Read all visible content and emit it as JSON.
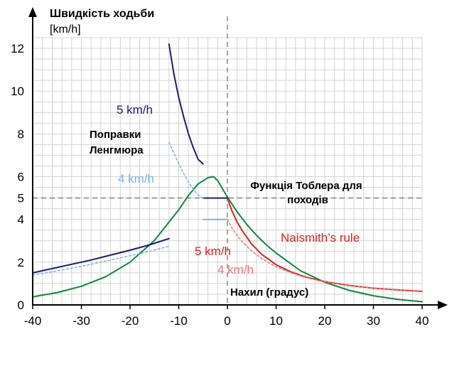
{
  "chart_data": {
    "type": "line",
    "title": "",
    "ylabel": "Швидкість ходьби",
    "yunit": "[km/h]",
    "xlabel": "Нахил (градус)",
    "xlim": [
      -40,
      40
    ],
    "ylim": [
      0,
      12.5
    ],
    "xticks": [
      -40,
      -30,
      -20,
      -10,
      0,
      10,
      20,
      30,
      40
    ],
    "yticks": [
      0,
      2,
      4,
      5,
      6,
      8,
      10,
      12
    ],
    "grid": true,
    "reference_lines": {
      "x": 0,
      "y": 5
    },
    "colors": {
      "tobler": "#0a8a3c",
      "naismith": "#e02020",
      "naismith_4": "#e87878",
      "langmuir": "#1c1c7a",
      "langmuir_4": "#7ab4e0",
      "grid": "#d4d4d4",
      "reference": "#7a7a7a"
    },
    "annotations": {
      "tobler": "Функція Тоблера для походів",
      "langmuir": "Поправки Ленгмюра",
      "naismith": "Naismith’s rule",
      "langmuir_5": "5 km/h",
      "langmuir_4": "4 km/h",
      "naismith_5": "5 km/h",
      "naismith_4": "4 km/h"
    },
    "series": [
      {
        "key": "tobler",
        "style": "solid",
        "x": [
          -40,
          -35,
          -30,
          -25,
          -20,
          -15,
          -10,
          -8,
          -6,
          -4,
          -2.86,
          -2,
          0,
          2,
          4,
          6,
          8,
          10,
          15,
          20,
          25,
          30,
          35,
          40
        ],
        "y": [
          0.38,
          0.58,
          0.87,
          1.32,
          2.0,
          3.01,
          4.45,
          5.12,
          5.66,
          5.95,
          6.0,
          5.82,
          5.04,
          4.35,
          3.76,
          3.25,
          2.81,
          2.43,
          1.6,
          1.06,
          0.68,
          0.43,
          0.26,
          0.15
        ]
      },
      {
        "key": "naismith",
        "style": "solid",
        "x": [
          0,
          0.5,
          1,
          2,
          3,
          5,
          7,
          10,
          13,
          16,
          20,
          25,
          30,
          35,
          40
        ],
        "y": [
          5.0,
          4.66,
          4.37,
          3.88,
          3.48,
          2.84,
          2.38,
          1.88,
          1.55,
          1.31,
          1.09,
          0.91,
          0.78,
          0.7,
          0.63
        ]
      },
      {
        "key": "naismith_4",
        "style": "dashed",
        "x": [
          0,
          0.5,
          1,
          2,
          3,
          5,
          7,
          10,
          13,
          16,
          20,
          25,
          30,
          35,
          40
        ],
        "y": [
          4.0,
          3.78,
          3.58,
          3.25,
          2.97,
          2.52,
          2.17,
          1.79,
          1.51,
          1.29,
          1.08,
          0.9,
          0.78,
          0.69,
          0.62
        ]
      },
      {
        "key": "langmuir_steep",
        "style": "solid",
        "x": [
          -12,
          -11,
          -10,
          -9,
          -8,
          -7,
          -6,
          -5
        ],
        "y": [
          12.2,
          10.8,
          9.7,
          8.8,
          8.0,
          7.35,
          6.8,
          6.6
        ]
      },
      {
        "key": "langmuir_flat",
        "style": "solid",
        "x": [
          -5,
          -4,
          -3,
          -2,
          -1,
          0
        ],
        "y": [
          5.0,
          5.0,
          5.0,
          5.0,
          5.0,
          5.0
        ]
      },
      {
        "key": "langmuir_gentle",
        "style": "solid",
        "x": [
          -40,
          -36,
          -32,
          -28,
          -24,
          -20,
          -16,
          -12
        ],
        "y": [
          1.5,
          1.7,
          1.9,
          2.1,
          2.33,
          2.56,
          2.81,
          3.1
        ]
      },
      {
        "key": "langmuir_4_steep",
        "style": "dashed",
        "x": [
          -12,
          -11,
          -10,
          -9,
          -8,
          -7,
          -6,
          -5
        ],
        "y": [
          7.6,
          7.1,
          6.6,
          6.15,
          5.75,
          5.4,
          5.15,
          5.0
        ]
      },
      {
        "key": "langmuir_4_flat",
        "style": "solid",
        "x": [
          -5,
          -4,
          -3,
          -2,
          -1,
          0
        ],
        "y": [
          4.0,
          4.0,
          4.0,
          4.0,
          4.0,
          4.0
        ]
      },
      {
        "key": "langmuir_4_gentle",
        "style": "dashed",
        "x": [
          -40,
          -36,
          -32,
          -28,
          -24,
          -20,
          -16,
          -12
        ],
        "y": [
          1.4,
          1.55,
          1.72,
          1.9,
          2.1,
          2.3,
          2.5,
          2.75
        ]
      }
    ]
  }
}
